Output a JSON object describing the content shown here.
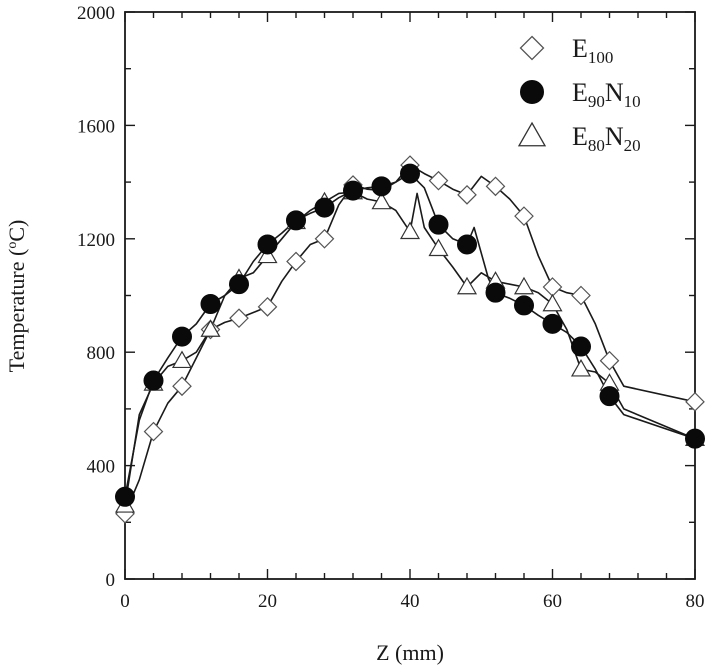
{
  "chart_data": {
    "type": "line",
    "xlabel": "Z (mm)",
    "ylabel_main": "Temperature (",
    "ylabel_sup": "o",
    "ylabel_tail": "C)",
    "xlim": [
      0,
      80
    ],
    "ylim": [
      0,
      2000
    ],
    "x_ticks": [
      "0",
      "20",
      "40",
      "60",
      "80"
    ],
    "y_ticks": [
      "0",
      "400",
      "800",
      "1200",
      "1600",
      "2000"
    ],
    "x_minor_step": 4,
    "y_minor_step": 200,
    "grid": false,
    "legend_position": "top-right",
    "series": [
      {
        "name": "E100",
        "legend_main": "E",
        "legend_sub1": "100",
        "legend_main2": "",
        "legend_sub2": "",
        "marker": "diamond",
        "color": "#555555",
        "fill": "#ffffff",
        "line": [
          [
            0,
            230
          ],
          [
            2,
            350
          ],
          [
            4,
            520
          ],
          [
            6,
            620
          ],
          [
            8,
            680
          ],
          [
            10,
            780
          ],
          [
            12,
            880
          ],
          [
            14,
            905
          ],
          [
            16,
            920
          ],
          [
            18,
            940
          ],
          [
            20,
            960
          ],
          [
            22,
            1050
          ],
          [
            24,
            1120
          ],
          [
            26,
            1180
          ],
          [
            28,
            1200
          ],
          [
            30,
            1320
          ],
          [
            32,
            1390
          ],
          [
            34,
            1375
          ],
          [
            36,
            1370
          ],
          [
            38,
            1400
          ],
          [
            40,
            1460
          ],
          [
            42,
            1430
          ],
          [
            44,
            1405
          ],
          [
            46,
            1375
          ],
          [
            48,
            1355
          ],
          [
            50,
            1420
          ],
          [
            52,
            1385
          ],
          [
            54,
            1340
          ],
          [
            56,
            1280
          ],
          [
            58,
            1140
          ],
          [
            60,
            1030
          ],
          [
            62,
            1010
          ],
          [
            64,
            1000
          ],
          [
            66,
            900
          ],
          [
            68,
            770
          ],
          [
            70,
            680
          ],
          [
            80,
            625
          ]
        ],
        "markers": [
          [
            0,
            230
          ],
          [
            4,
            520
          ],
          [
            8,
            680
          ],
          [
            12,
            880
          ],
          [
            16,
            920
          ],
          [
            20,
            960
          ],
          [
            24,
            1120
          ],
          [
            28,
            1200
          ],
          [
            32,
            1390
          ],
          [
            40,
            1460
          ],
          [
            44,
            1405
          ],
          [
            48,
            1355
          ],
          [
            52,
            1385
          ],
          [
            56,
            1280
          ],
          [
            60,
            1030
          ],
          [
            64,
            1000
          ],
          [
            68,
            770
          ],
          [
            80,
            625
          ]
        ]
      },
      {
        "name": "E90N10",
        "legend_main": "E",
        "legend_sub1": "90",
        "legend_main2": "N",
        "legend_sub2": "10",
        "marker": "circle",
        "color": "#0a0a0a",
        "fill": "#0a0a0a",
        "line": [
          [
            0,
            290
          ],
          [
            2,
            560
          ],
          [
            4,
            700
          ],
          [
            6,
            780
          ],
          [
            8,
            855
          ],
          [
            10,
            900
          ],
          [
            12,
            970
          ],
          [
            14,
            1000
          ],
          [
            16,
            1040
          ],
          [
            18,
            1120
          ],
          [
            20,
            1180
          ],
          [
            22,
            1220
          ],
          [
            24,
            1265
          ],
          [
            26,
            1290
          ],
          [
            28,
            1310
          ],
          [
            30,
            1345
          ],
          [
            32,
            1370
          ],
          [
            34,
            1380
          ],
          [
            36,
            1385
          ],
          [
            38,
            1400
          ],
          [
            40,
            1430
          ],
          [
            42,
            1380
          ],
          [
            44,
            1250
          ],
          [
            46,
            1200
          ],
          [
            48,
            1180
          ],
          [
            49,
            1240
          ],
          [
            51,
            1060
          ],
          [
            52,
            1010
          ],
          [
            54,
            990
          ],
          [
            56,
            965
          ],
          [
            58,
            930
          ],
          [
            60,
            900
          ],
          [
            62,
            870
          ],
          [
            64,
            820
          ],
          [
            66,
            740
          ],
          [
            68,
            645
          ],
          [
            70,
            580
          ],
          [
            80,
            495
          ]
        ],
        "markers": [
          [
            0,
            290
          ],
          [
            4,
            700
          ],
          [
            8,
            855
          ],
          [
            12,
            970
          ],
          [
            16,
            1040
          ],
          [
            20,
            1180
          ],
          [
            24,
            1265
          ],
          [
            28,
            1310
          ],
          [
            32,
            1370
          ],
          [
            36,
            1385
          ],
          [
            40,
            1430
          ],
          [
            44,
            1250
          ],
          [
            48,
            1180
          ],
          [
            52,
            1010
          ],
          [
            56,
            965
          ],
          [
            60,
            900
          ],
          [
            64,
            820
          ],
          [
            68,
            645
          ],
          [
            80,
            495
          ]
        ]
      },
      {
        "name": "E80N20",
        "legend_main": "E",
        "legend_sub1": "80",
        "legend_main2": "N",
        "legend_sub2": "20",
        "marker": "triangle",
        "color": "#333333",
        "fill": "#ffffff",
        "line": [
          [
            0,
            260
          ],
          [
            2,
            580
          ],
          [
            4,
            690
          ],
          [
            6,
            750
          ],
          [
            8,
            770
          ],
          [
            10,
            800
          ],
          [
            12,
            880
          ],
          [
            14,
            1000
          ],
          [
            16,
            1060
          ],
          [
            18,
            1080
          ],
          [
            20,
            1140
          ],
          [
            22,
            1200
          ],
          [
            24,
            1260
          ],
          [
            26,
            1300
          ],
          [
            28,
            1330
          ],
          [
            30,
            1360
          ],
          [
            32,
            1365
          ],
          [
            34,
            1340
          ],
          [
            36,
            1330
          ],
          [
            38,
            1300
          ],
          [
            40,
            1225
          ],
          [
            41,
            1360
          ],
          [
            42,
            1240
          ],
          [
            44,
            1165
          ],
          [
            46,
            1100
          ],
          [
            48,
            1030
          ],
          [
            50,
            1080
          ],
          [
            52,
            1050
          ],
          [
            54,
            1040
          ],
          [
            56,
            1030
          ],
          [
            58,
            1010
          ],
          [
            60,
            970
          ],
          [
            62,
            880
          ],
          [
            64,
            740
          ],
          [
            66,
            730
          ],
          [
            68,
            690
          ],
          [
            70,
            600
          ],
          [
            80,
            495
          ]
        ],
        "markers": [
          [
            0,
            260
          ],
          [
            4,
            690
          ],
          [
            8,
            770
          ],
          [
            12,
            880
          ],
          [
            16,
            1060
          ],
          [
            20,
            1140
          ],
          [
            24,
            1260
          ],
          [
            28,
            1330
          ],
          [
            32,
            1365
          ],
          [
            36,
            1330
          ],
          [
            40,
            1225
          ],
          [
            44,
            1165
          ],
          [
            48,
            1030
          ],
          [
            52,
            1050
          ],
          [
            56,
            1030
          ],
          [
            60,
            970
          ],
          [
            64,
            740
          ],
          [
            68,
            690
          ],
          [
            80,
            495
          ]
        ]
      }
    ]
  }
}
